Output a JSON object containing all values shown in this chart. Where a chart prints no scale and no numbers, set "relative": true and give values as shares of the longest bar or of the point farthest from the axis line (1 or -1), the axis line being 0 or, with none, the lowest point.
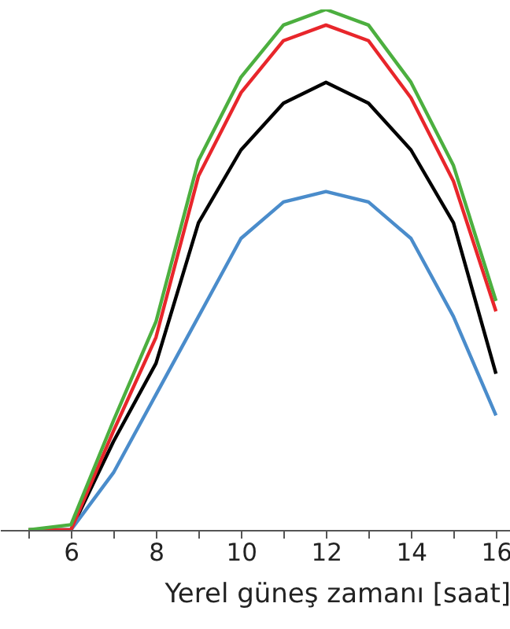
{
  "chart_data": {
    "type": "line",
    "xlabel": "Yerel güneş zamanı [saat]",
    "relative": true,
    "x": [
      5,
      6,
      7,
      8,
      9,
      10,
      11,
      12,
      13,
      14,
      15,
      16
    ],
    "xlim": [
      4.33,
      16.33
    ],
    "xticks": [
      {
        "value": 5,
        "label": null
      },
      6,
      {
        "value": 7,
        "label": null
      },
      8,
      {
        "value": 9,
        "label": null
      },
      10,
      {
        "value": 11,
        "label": null
      },
      12,
      {
        "value": 13,
        "label": null
      },
      14,
      {
        "value": 15,
        "label": null
      },
      16
    ],
    "series": [
      {
        "color": "#000000",
        "values": [
          0,
          0,
          0.17,
          0.32,
          0.59,
          0.73,
          0.82,
          0.86,
          0.82,
          0.73,
          0.59,
          0.3
        ]
      },
      {
        "color": "#4a8ccb",
        "values": [
          0,
          0,
          0.11,
          0.26,
          0.41,
          0.56,
          0.63,
          0.65,
          0.63,
          0.56,
          0.41,
          0.22
        ]
      },
      {
        "color": "#e8262b",
        "values": [
          0,
          0,
          0.19,
          0.37,
          0.68,
          0.84,
          0.94,
          0.97,
          0.94,
          0.83,
          0.67,
          0.42
        ]
      },
      {
        "color": "#4caf3f",
        "values": [
          0,
          0.01,
          0.21,
          0.4,
          0.71,
          0.87,
          0.97,
          1,
          0.97,
          0.86,
          0.7,
          0.44
        ]
      }
    ],
    "marker": "none",
    "line_style": "solid"
  }
}
